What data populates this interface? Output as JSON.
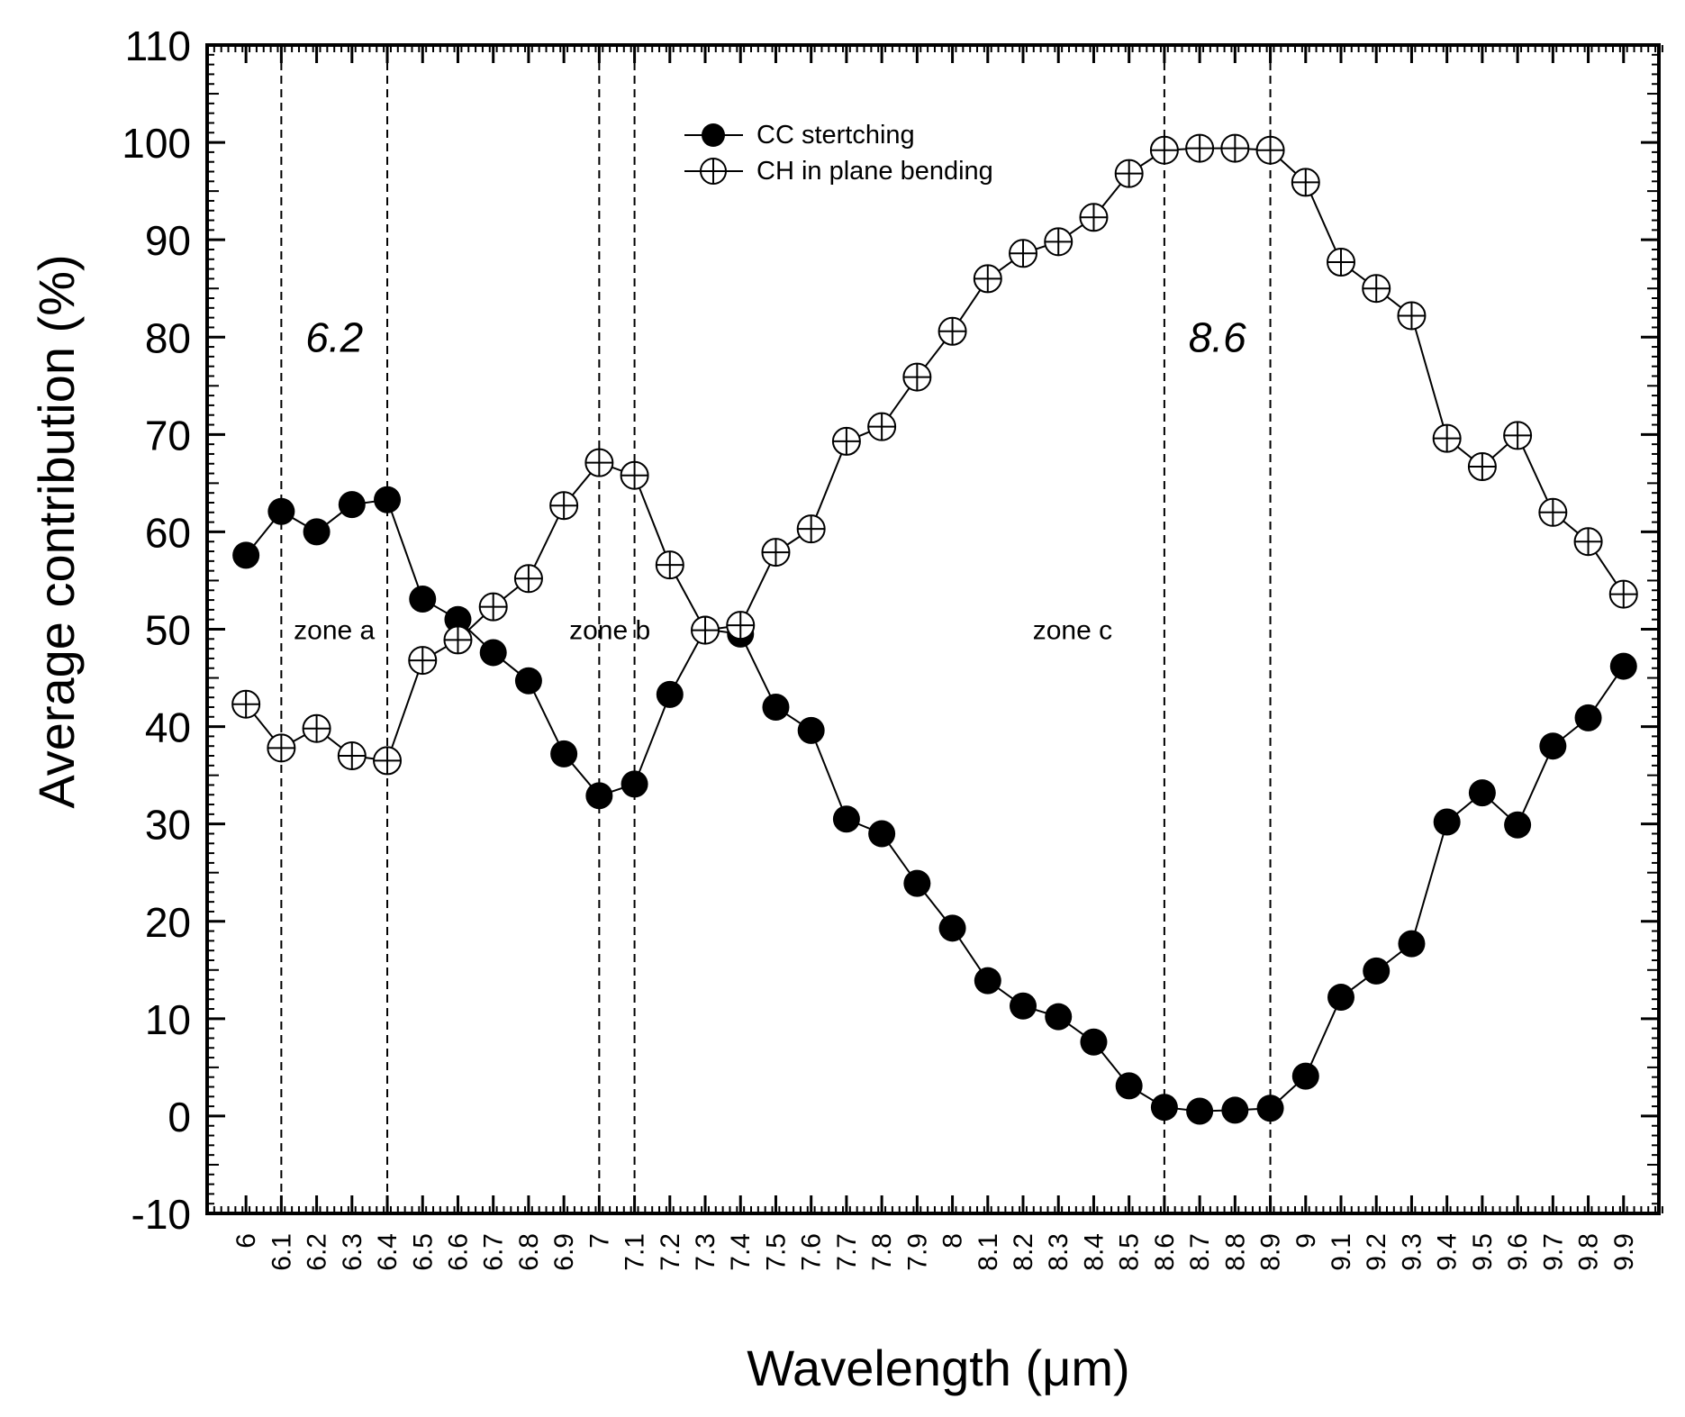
{
  "chart_data": {
    "type": "line",
    "title": "",
    "xlabel": "Wavelength (μm)",
    "ylabel": "Average contribution (%)",
    "ylim": [
      -10,
      110
    ],
    "y_ticks": [
      -10,
      0,
      10,
      20,
      30,
      40,
      50,
      60,
      70,
      80,
      90,
      100,
      110
    ],
    "x": [
      6,
      6.1,
      6.2,
      6.3,
      6.4,
      6.5,
      6.6,
      6.7,
      6.8,
      6.9,
      7,
      7.1,
      7.2,
      7.3,
      7.4,
      7.5,
      7.6,
      7.7,
      7.8,
      7.9,
      8,
      8.1,
      8.2,
      8.3,
      8.4,
      8.5,
      8.6,
      8.7,
      8.8,
      8.9,
      9,
      9.1,
      9.2,
      9.3,
      9.4,
      9.5,
      9.6,
      9.7,
      9.8,
      9.9
    ],
    "x_tick_labels": [
      "6",
      "6.1",
      "6.2",
      "6.3",
      "6.4",
      "6.5",
      "6.6",
      "6.7",
      "6.8",
      "6.9",
      "7",
      "7.1",
      "7.2",
      "7.3",
      "7.4",
      "7.5",
      "7.6",
      "7.7",
      "7.8",
      "7.9",
      "8",
      "8.1",
      "8.2",
      "8.3",
      "8.4",
      "8.5",
      "8.6",
      "8.7",
      "8.8",
      "8.9",
      "9",
      "9.1",
      "9.2",
      "9.3",
      "9.4",
      "9.5",
      "9.6",
      "9.7",
      "9.8",
      "9.9"
    ],
    "series": [
      {
        "name": "CC stertching",
        "marker": "filled-circle",
        "values": [
          57.6,
          62.1,
          60.0,
          62.8,
          63.3,
          53.1,
          51.0,
          47.6,
          44.7,
          37.2,
          32.9,
          34.1,
          43.3,
          50.0,
          49.5,
          42.0,
          39.6,
          30.5,
          29.0,
          23.9,
          19.3,
          13.9,
          11.3,
          10.2,
          7.6,
          3.1,
          0.9,
          0.5,
          0.6,
          0.8,
          4.1,
          12.2,
          14.9,
          17.7,
          30.2,
          33.2,
          29.9,
          38.0,
          40.9,
          46.2
        ]
      },
      {
        "name": "CH in plane bending",
        "marker": "crossed-circle",
        "values": [
          42.3,
          37.8,
          39.8,
          37.0,
          36.5,
          46.8,
          48.9,
          52.3,
          55.2,
          62.7,
          67.1,
          65.8,
          56.6,
          49.9,
          50.4,
          57.9,
          60.3,
          69.3,
          70.8,
          75.9,
          80.6,
          86.0,
          88.6,
          89.8,
          92.3,
          96.8,
          99.2,
          99.4,
          99.4,
          99.2,
          95.9,
          87.7,
          85.0,
          82.2,
          69.6,
          66.7,
          69.9,
          62.0,
          59.0,
          53.6
        ]
      }
    ],
    "vertical_lines": [
      6.1,
      6.4,
      7.0,
      7.1,
      8.6,
      8.9
    ],
    "annotations": [
      {
        "text": "6.2",
        "x": 6.25,
        "y": 80,
        "style": "italic"
      },
      {
        "text": "8.6",
        "x": 8.75,
        "y": 80,
        "style": "italic"
      }
    ],
    "zones": [
      {
        "text": "zone a",
        "x": 6.25,
        "y": 50
      },
      {
        "text": "zone b",
        "x": 7.03,
        "y": 50
      },
      {
        "text": "zone c",
        "x": 8.34,
        "y": 50
      }
    ],
    "legend_position": "top-center",
    "grid": false
  }
}
